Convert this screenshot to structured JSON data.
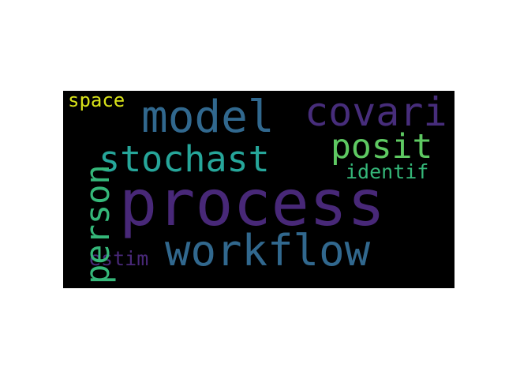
{
  "canvas_background": "#000000",
  "page_background": "#ffffff",
  "words": {
    "process": {
      "text": "process",
      "color": "#482878"
    },
    "workflow": {
      "text": "workflow",
      "color": "#31688e"
    },
    "model": {
      "text": "model",
      "color": "#31688e"
    },
    "stochast": {
      "text": "stochast",
      "color": "#26a69a"
    },
    "covari": {
      "text": "covari",
      "color": "#472d7b"
    },
    "posit": {
      "text": "posit",
      "color": "#5ec962"
    },
    "identif": {
      "text": "identif",
      "color": "#35b779"
    },
    "space": {
      "text": "space",
      "color": "#d8e219"
    },
    "estim": {
      "text": "estim",
      "color": "#482878"
    },
    "person": {
      "text": "person",
      "color": "#35b779"
    }
  }
}
